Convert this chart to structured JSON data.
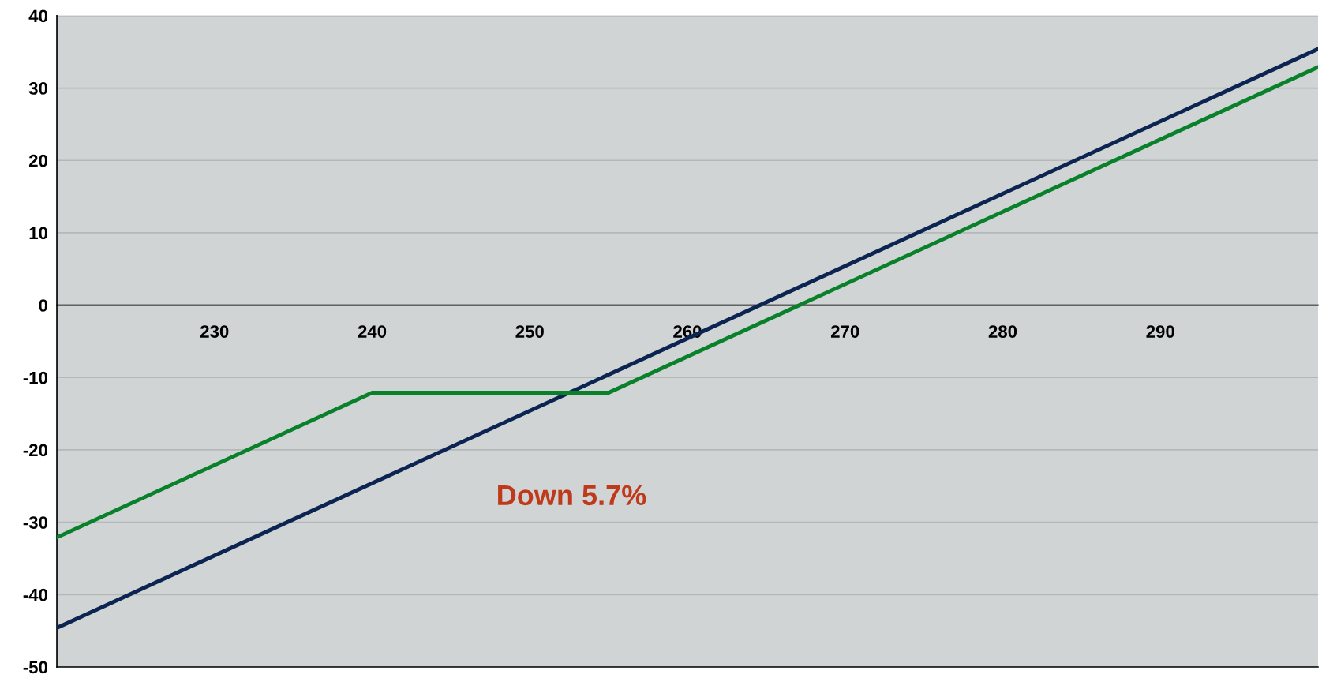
{
  "chart_data": {
    "type": "line",
    "series": [
      {
        "color": "#0c2451",
        "x": [
          220,
          300
        ],
        "values": [
          -44.6,
          35.4
        ]
      },
      {
        "color": "#09802a",
        "x": [
          220,
          240,
          255,
          300
        ],
        "values": [
          -32.1,
          -12.1,
          -12.1,
          32.9
        ]
      }
    ],
    "xlim": [
      220,
      300
    ],
    "xticks": [
      230,
      240,
      250,
      260,
      270,
      280,
      290
    ],
    "ylim": [
      -50,
      40
    ],
    "yticks": [
      -50,
      -40,
      -30,
      -20,
      -10,
      0,
      10,
      20,
      30,
      40
    ],
    "grid": "y",
    "marker": "none",
    "line_style": "solid",
    "annotations": [
      "Down 5.7%"
    ]
  }
}
